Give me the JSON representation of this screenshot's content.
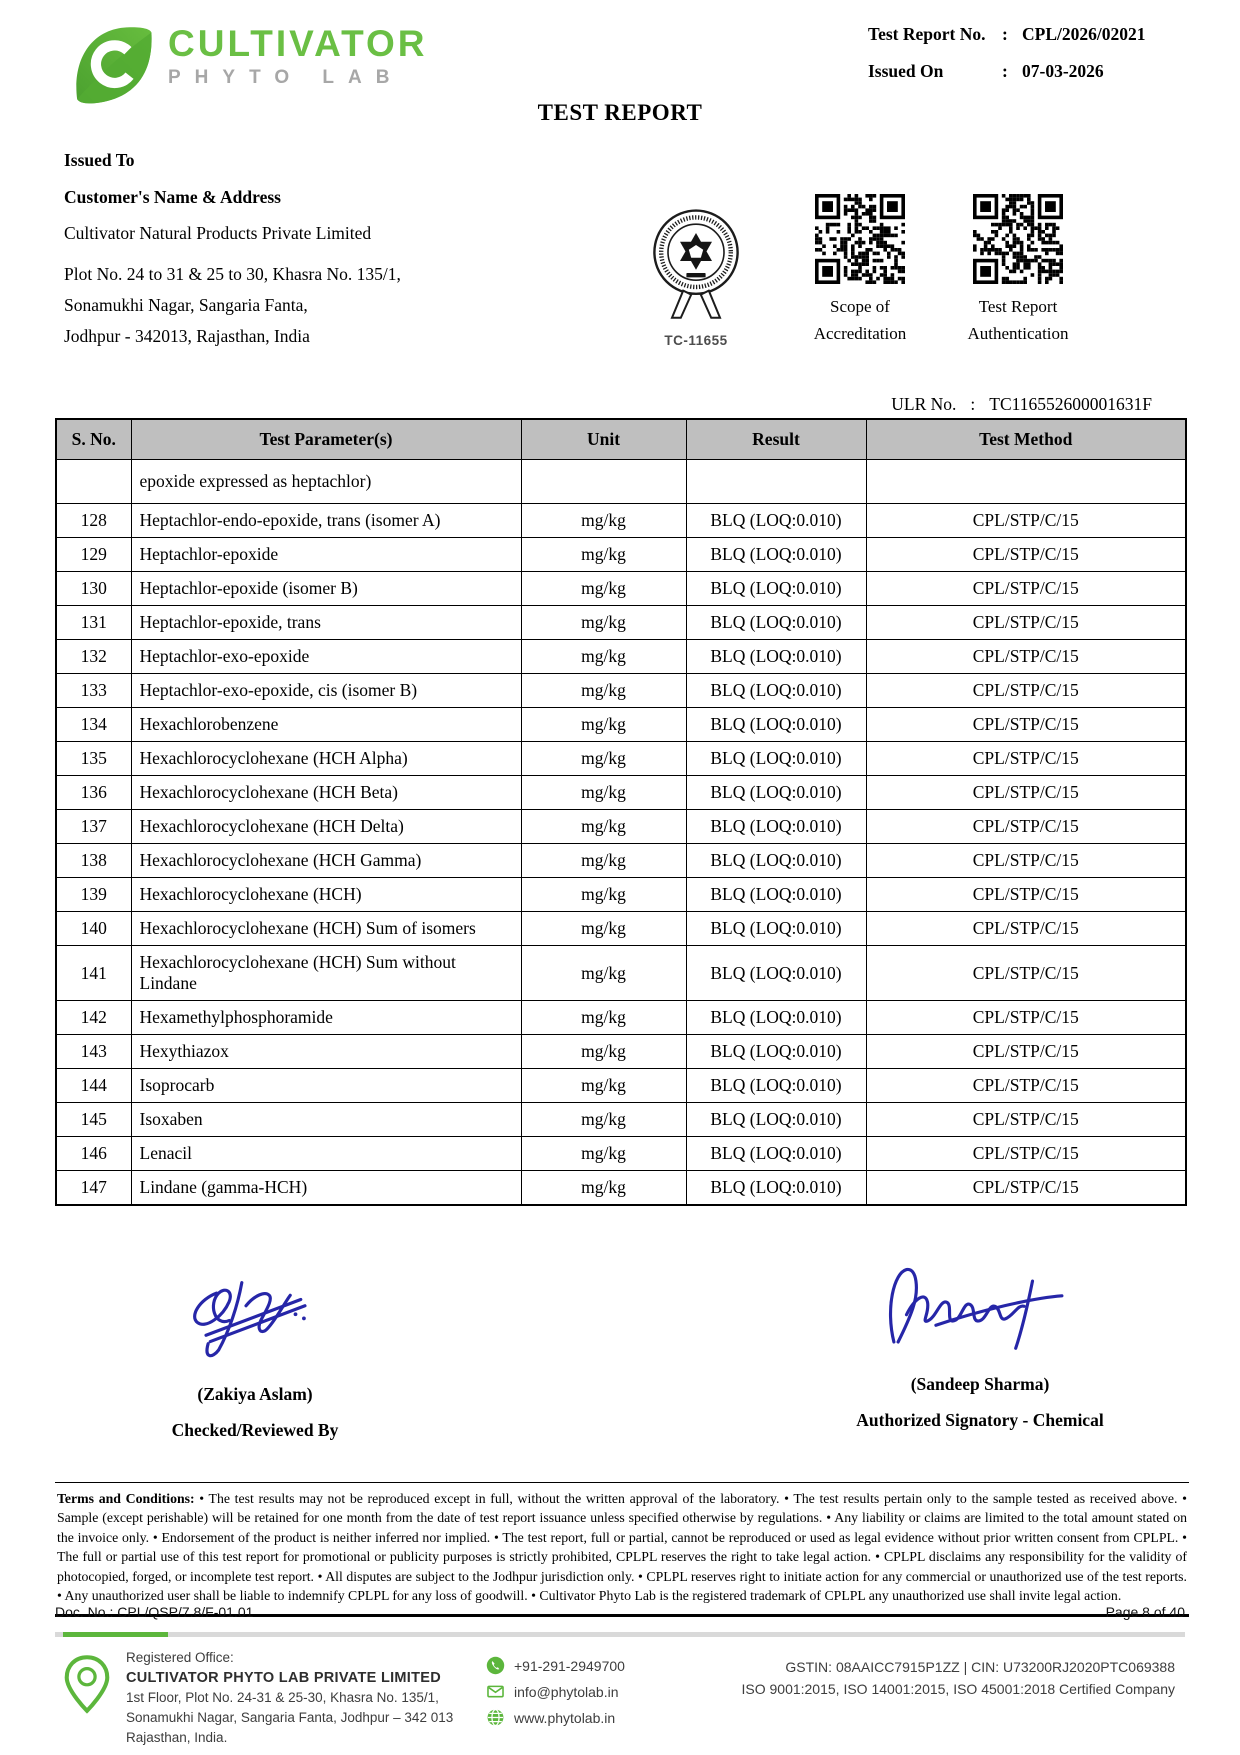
{
  "colors": {
    "brand_green": "#6abf44",
    "logo_gray": "#a7a7a7",
    "table_header_bg": "#bfbfbf",
    "signature_ink": "#2626a8",
    "footer_green": "#5cb63c"
  },
  "header": {
    "logo_brand": "CULTIVATOR",
    "logo_sub": "P H Y T O   L A B",
    "report_no_label": "Test Report No.",
    "report_no_sep": ":",
    "report_no_value": "CPL/2026/02021",
    "issued_on_label": "Issued On",
    "issued_on_sep": ":",
    "issued_on_value": "07-03-2026",
    "title": "TEST REPORT"
  },
  "issued_to": {
    "label": "Issued To",
    "customer_label": "Customer's Name & Address",
    "customer_name": "Cultivator Natural Products Private Limited",
    "address_line1": "Plot No. 24 to 31 & 25 to 30, Khasra No. 135/1,",
    "address_line2": "Sonamukhi Nagar, Sangaria Fanta,",
    "address_line3": "Jodhpur - 342013, Rajasthan, India"
  },
  "accreditation": {
    "seal_code": "TC-11655",
    "qr1_label_line1": "Scope of",
    "qr1_label_line2": "Accreditation",
    "qr2_label_line1": "Test Report",
    "qr2_label_line2": "Authentication",
    "ulr_label": "ULR No.",
    "ulr_sep": ":",
    "ulr_value": "TC116552600001631F"
  },
  "table": {
    "headers": [
      "S. No.",
      "Test Parameter(s)",
      "Unit",
      "Result",
      "Test Method"
    ],
    "rows": [
      {
        "sno": "",
        "param": "epoxide expressed as heptachlor)",
        "unit": "",
        "result": "",
        "method": ""
      },
      {
        "sno": "128",
        "param": "Heptachlor-endo-epoxide, trans (isomer A)",
        "unit": "mg/kg",
        "result": "BLQ (LOQ:0.010)",
        "method": "CPL/STP/C/15"
      },
      {
        "sno": "129",
        "param": "Heptachlor-epoxide",
        "unit": "mg/kg",
        "result": "BLQ (LOQ:0.010)",
        "method": "CPL/STP/C/15"
      },
      {
        "sno": "130",
        "param": "Heptachlor-epoxide (isomer B)",
        "unit": "mg/kg",
        "result": "BLQ (LOQ:0.010)",
        "method": "CPL/STP/C/15"
      },
      {
        "sno": "131",
        "param": "Heptachlor-epoxide, trans",
        "unit": "mg/kg",
        "result": "BLQ (LOQ:0.010)",
        "method": "CPL/STP/C/15"
      },
      {
        "sno": "132",
        "param": "Heptachlor-exo-epoxide",
        "unit": "mg/kg",
        "result": "BLQ (LOQ:0.010)",
        "method": "CPL/STP/C/15"
      },
      {
        "sno": "133",
        "param": "Heptachlor-exo-epoxide, cis (isomer B)",
        "unit": "mg/kg",
        "result": "BLQ (LOQ:0.010)",
        "method": "CPL/STP/C/15"
      },
      {
        "sno": "134",
        "param": "Hexachlorobenzene",
        "unit": "mg/kg",
        "result": "BLQ (LOQ:0.010)",
        "method": "CPL/STP/C/15"
      },
      {
        "sno": "135",
        "param": "Hexachlorocyclohexane (HCH Alpha)",
        "unit": "mg/kg",
        "result": "BLQ (LOQ:0.010)",
        "method": "CPL/STP/C/15"
      },
      {
        "sno": "136",
        "param": "Hexachlorocyclohexane (HCH Beta)",
        "unit": "mg/kg",
        "result": "BLQ (LOQ:0.010)",
        "method": "CPL/STP/C/15"
      },
      {
        "sno": "137",
        "param": "Hexachlorocyclohexane (HCH Delta)",
        "unit": "mg/kg",
        "result": "BLQ (LOQ:0.010)",
        "method": "CPL/STP/C/15"
      },
      {
        "sno": "138",
        "param": "Hexachlorocyclohexane (HCH Gamma)",
        "unit": "mg/kg",
        "result": "BLQ (LOQ:0.010)",
        "method": "CPL/STP/C/15"
      },
      {
        "sno": "139",
        "param": "Hexachlorocyclohexane (HCH)",
        "unit": "mg/kg",
        "result": "BLQ (LOQ:0.010)",
        "method": "CPL/STP/C/15"
      },
      {
        "sno": "140",
        "param": "Hexachlorocyclohexane (HCH) Sum of isomers",
        "unit": "mg/kg",
        "result": "BLQ (LOQ:0.010)",
        "method": "CPL/STP/C/15"
      },
      {
        "sno": "141",
        "param": "Hexachlorocyclohexane (HCH) Sum without Lindane",
        "unit": "mg/kg",
        "result": "BLQ (LOQ:0.010)",
        "method": "CPL/STP/C/15"
      },
      {
        "sno": "142",
        "param": "Hexamethylphosphoramide",
        "unit": "mg/kg",
        "result": "BLQ (LOQ:0.010)",
        "method": "CPL/STP/C/15"
      },
      {
        "sno": "143",
        "param": "Hexythiazox",
        "unit": "mg/kg",
        "result": "BLQ (LOQ:0.010)",
        "method": "CPL/STP/C/15"
      },
      {
        "sno": "144",
        "param": "Isoprocarb",
        "unit": "mg/kg",
        "result": "BLQ (LOQ:0.010)",
        "method": "CPL/STP/C/15"
      },
      {
        "sno": "145",
        "param": "Isoxaben",
        "unit": "mg/kg",
        "result": "BLQ (LOQ:0.010)",
        "method": "CPL/STP/C/15"
      },
      {
        "sno": "146",
        "param": "Lenacil",
        "unit": "mg/kg",
        "result": "BLQ (LOQ:0.010)",
        "method": "CPL/STP/C/15"
      },
      {
        "sno": "147",
        "param": "Lindane (gamma-HCH)",
        "unit": "mg/kg",
        "result": "BLQ (LOQ:0.010)",
        "method": "CPL/STP/C/15"
      }
    ]
  },
  "signatures": {
    "left_name": "(Zakiya Aslam)",
    "left_role": "Checked/Reviewed By",
    "right_name": "(Sandeep Sharma)",
    "right_role": "Authorized Signatory - Chemical"
  },
  "terms": {
    "label": "Terms and Conditions: ",
    "text": "• The test results may not be reproduced except in full, without the written approval of the laboratory. • The test results pertain only to the sample tested as received above. • Sample (except perishable) will be retained for one month from the date of test report issuance unless specified otherwise by regulations. • Any liability or claims are limited to the total amount stated on the invoice only. • Endorsement of the product is neither inferred nor implied. • The test report, full or partial, cannot be reproduced or used as legal evidence without prior written consent from CPLPL. • The full or partial use of this test report for promotional or publicity purposes is strictly prohibited, CPLPL reserves the right to take legal action. • CPLPL disclaims any responsibility for the validity of photocopied, forged, or incomplete test report. • All disputes are subject to the Jodhpur jurisdiction only. • CPLPL reserves right to initiate action for any commercial or unauthorized use of the test reports. • Any unauthorized user shall be liable to indemnify CPLPL for any loss of goodwill. • Cultivator Phyto Lab is the registered trademark of CPLPL any unauthorized use shall invite legal action."
  },
  "doc_footer": {
    "doc_no": "Doc. No.: CPL/QSP/7.8/F-01.01",
    "page": "Page 8 of  40"
  },
  "footer": {
    "office_label": "Registered Office:",
    "company": "CULTIVATOR PHYTO LAB PRIVATE LIMITED",
    "address_line1": "1st Floor, Plot No. 24-31 & 25-30, Khasra No. 135/1,",
    "address_line2": "Sonamukhi Nagar, Sangaria Fanta, Jodhpur – 342 013",
    "address_line3": "Rajasthan, India.",
    "phone": "+91-291-2949700",
    "email": "info@phytolab.in",
    "website": "www.phytolab.in",
    "gstin_line": "GSTIN: 08AAICC7915P1ZZ | CIN: U73200RJ2020PTC069388",
    "iso_line": "ISO 9001:2015, ISO 14001:2015, ISO 45001:2018 Certified Company"
  }
}
